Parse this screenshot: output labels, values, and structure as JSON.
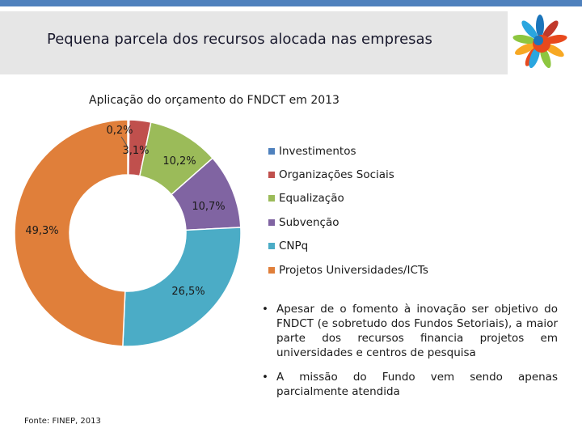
{
  "slide": {
    "title": "Pequena parcela dos recursos alocada nas empresas",
    "source": "Fonte: FINEP, 2013"
  },
  "chart_data": {
    "type": "pie",
    "variant": "donut",
    "title": "Aplicação do orçamento do FNDCT em 2013",
    "unit": "%",
    "legend_position": "right",
    "slices": [
      {
        "label": "Investimentos",
        "value": 0.2,
        "value_label": "0,2%",
        "color": "#4f81bd"
      },
      {
        "label": "Organizações Sociais",
        "value": 3.1,
        "value_label": "3,1%",
        "color": "#c0504d"
      },
      {
        "label": "Equalização",
        "value": 10.2,
        "value_label": "10,2%",
        "color": "#9bbb59"
      },
      {
        "label": "Subvenção",
        "value": 10.7,
        "value_label": "10,7%",
        "color": "#8064a2"
      },
      {
        "label": "CNPq",
        "value": 26.5,
        "value_label": "26,5%",
        "color": "#4bacc6"
      },
      {
        "label": "Projetos Universidades/ICTs",
        "value": 49.3,
        "value_label": "49,3%",
        "color": "#e07f3a"
      }
    ]
  },
  "bullets": [
    "Apesar de o fomento à inovação ser objetivo do FNDCT (e sobretudo dos Fundos Setoriais), a maior parte dos recursos financia projetos em universidades e centros de pesquisa",
    "A missão do Fundo vem sendo apenas parcialmente atendida"
  ],
  "bullet_symbol": "•",
  "logo": {
    "icon": "colorful-hands-logo-icon",
    "colors": [
      "#e8491d",
      "#f7a823",
      "#8dc63f",
      "#2aa6df",
      "#1b75bb",
      "#c0392b"
    ]
  }
}
